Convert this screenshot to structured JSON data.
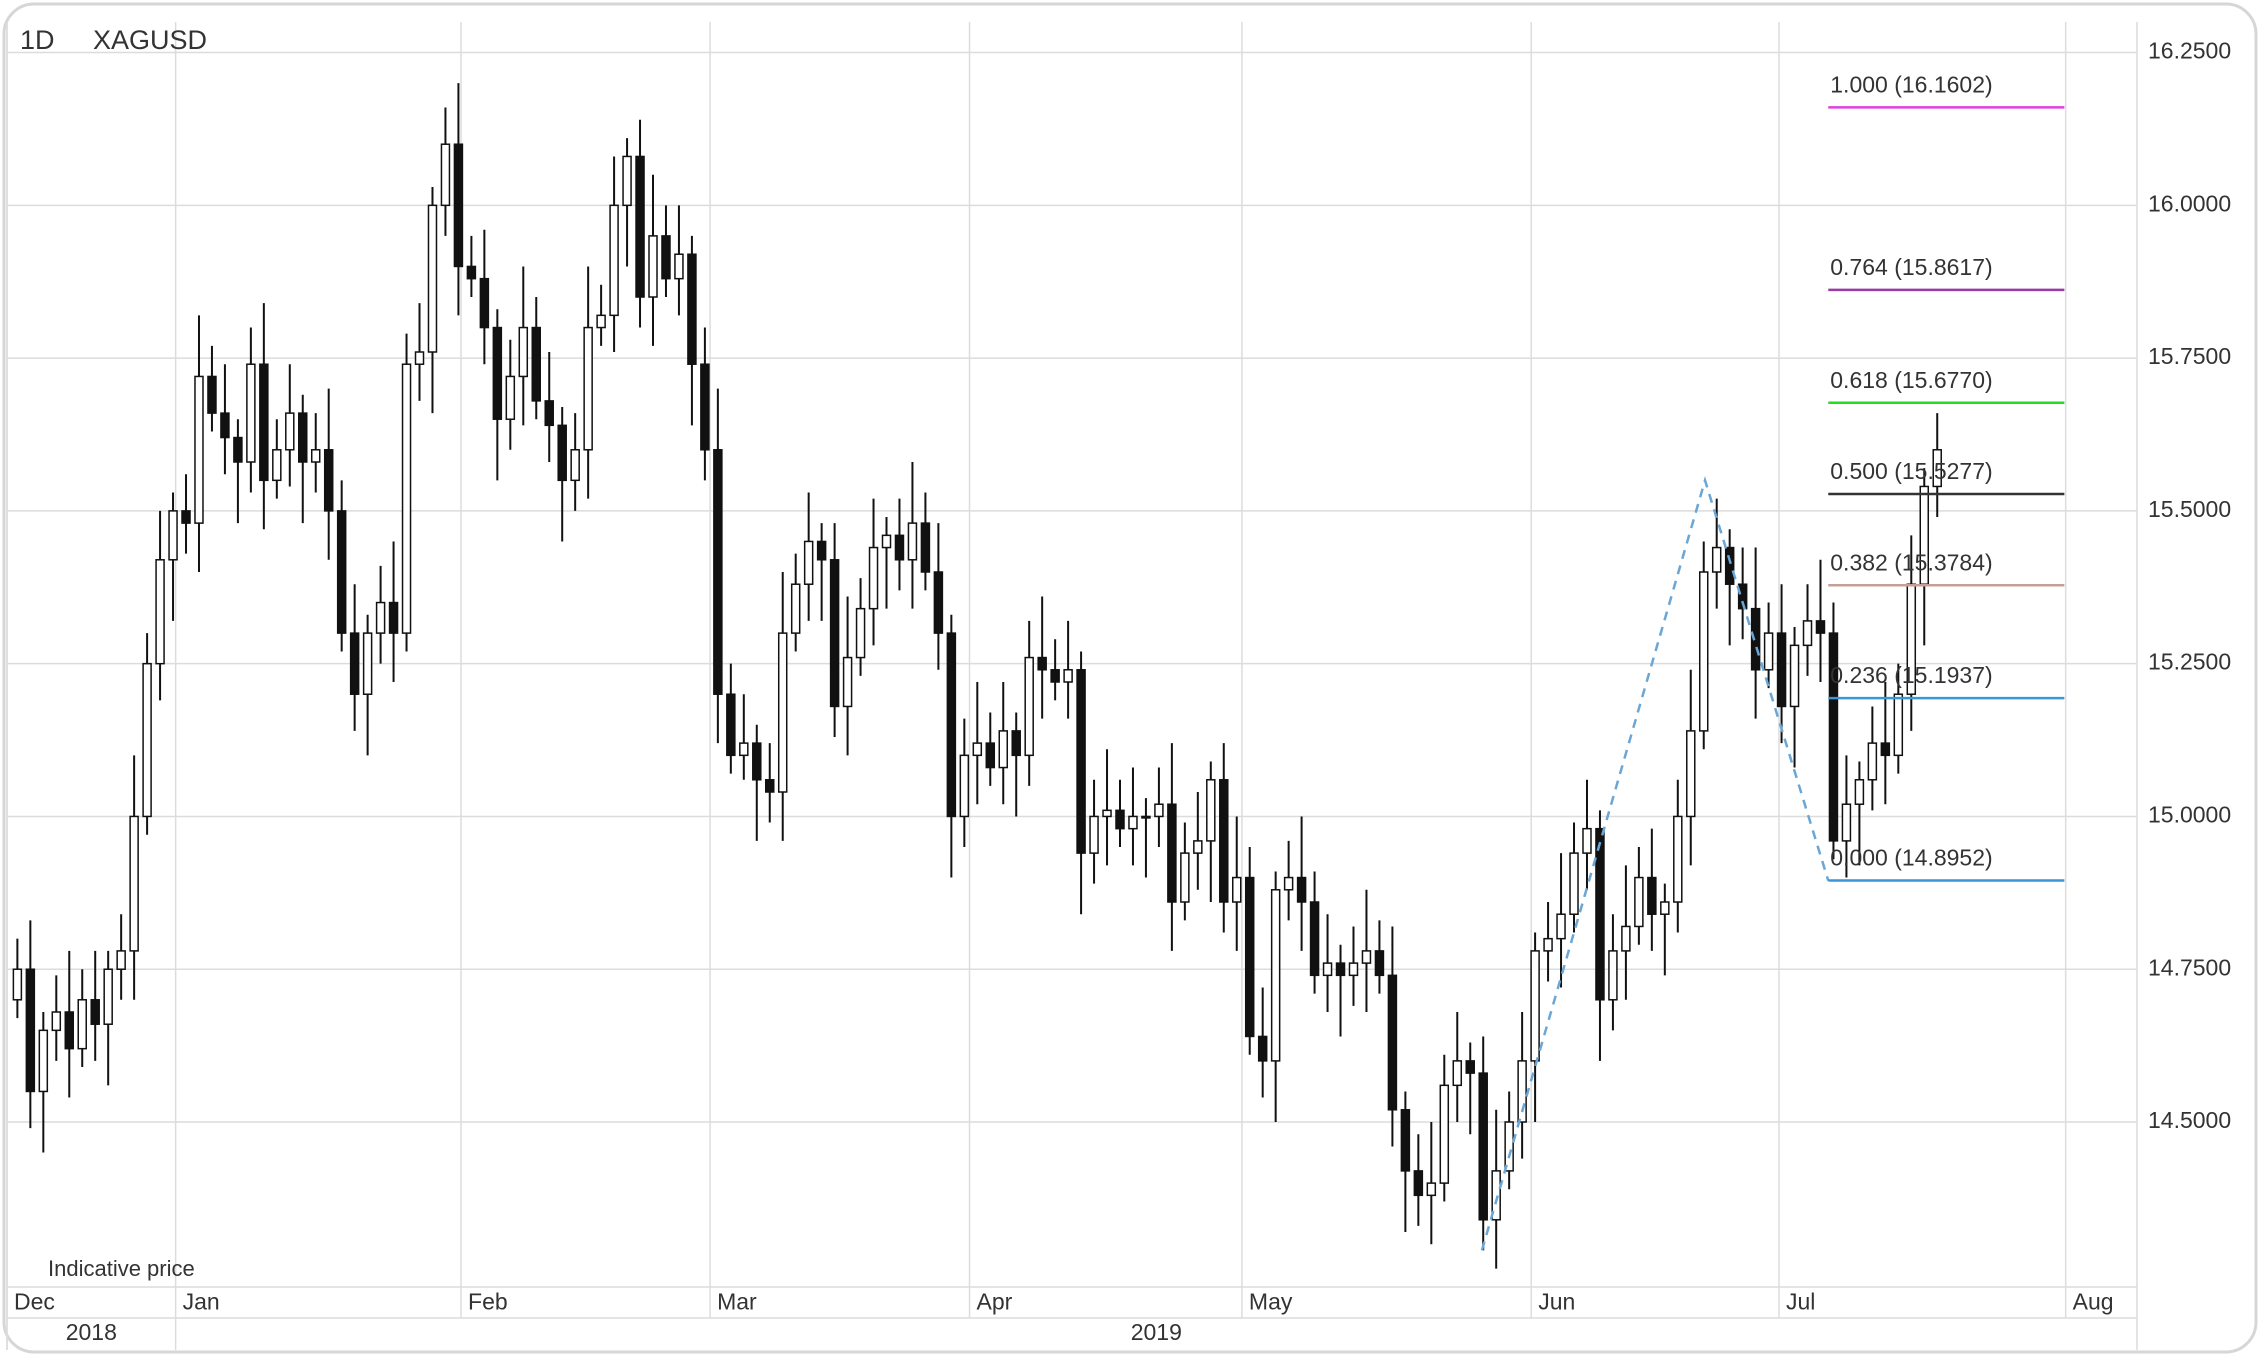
{
  "chart_data": {
    "type": "candlestick",
    "interval": "1D",
    "symbol": "XAGUSD",
    "note": "Indicative price",
    "xlim": [
      -0.8,
      163.4
    ],
    "xticks": [
      {
        "value": -0.8,
        "label": "Dec"
      },
      {
        "value": 12.2,
        "label": "Jan"
      },
      {
        "value": 34.2,
        "label": "Feb"
      },
      {
        "value": 53.4,
        "label": "Mar"
      },
      {
        "value": 73.4,
        "label": "Apr"
      },
      {
        "value": 94.4,
        "label": "May"
      },
      {
        "value": 116.7,
        "label": "Jun"
      },
      {
        "value": 135.8,
        "label": "Jul"
      },
      {
        "value": 157.9,
        "label": "Aug"
      }
    ],
    "year_ticks": [
      {
        "value": -0.8,
        "label": "2018"
      },
      {
        "value": 12.2,
        "label": "2019"
      }
    ],
    "ylim": [
      14.23,
      16.3
    ],
    "yticks": [
      {
        "value": 14.5,
        "label": "14.5000"
      },
      {
        "value": 14.75,
        "label": "14.7500"
      },
      {
        "value": 15,
        "label": "15.0000"
      },
      {
        "value": 15.25,
        "label": "15.2500"
      },
      {
        "value": 15.5,
        "label": "15.5000"
      },
      {
        "value": 15.75,
        "label": "15.7500"
      },
      {
        "value": 16,
        "label": "16.0000"
      },
      {
        "value": 16.25,
        "label": "16.2500"
      }
    ],
    "grid": true,
    "up_color": "#ffffff",
    "down_color": "#111111",
    "open": [
      14.7,
      14.75,
      14.55,
      14.65,
      14.68,
      14.62,
      14.7,
      14.66,
      14.75,
      14.78,
      15.0,
      15.25,
      15.42,
      15.5,
      15.48,
      15.72,
      15.66,
      15.62,
      15.58,
      15.74,
      15.55,
      15.6,
      15.66,
      15.58,
      15.6,
      15.5,
      15.3,
      15.2,
      15.3,
      15.35,
      15.3,
      15.74,
      15.76,
      16.0,
      16.1,
      15.9,
      15.88,
      15.8,
      15.65,
      15.72,
      15.8,
      15.68,
      15.64,
      15.55,
      15.6,
      15.8,
      15.82,
      16.0,
      16.08,
      15.85,
      15.95,
      15.88,
      15.92,
      15.74,
      15.6,
      15.2,
      15.1,
      15.12,
      15.06,
      15.04,
      15.3,
      15.38,
      15.45,
      15.42,
      15.18,
      15.26,
      15.34,
      15.44,
      15.46,
      15.42,
      15.48,
      15.4,
      15.3,
      15.0,
      15.1,
      15.12,
      15.08,
      15.14,
      15.1,
      15.26,
      15.24,
      15.22,
      15.24,
      14.94,
      15.0,
      15.01,
      14.98,
      15.0,
      15.0,
      15.02,
      14.86,
      14.94,
      14.96,
      15.06,
      14.86,
      14.9,
      14.64,
      14.6,
      14.88,
      14.9,
      14.86,
      14.74,
      14.76,
      14.74,
      14.76,
      14.78,
      14.74,
      14.52,
      14.42,
      14.38,
      14.4,
      14.56,
      14.6,
      14.58,
      14.34,
      14.42,
      14.5,
      14.6,
      14.78,
      14.8,
      14.84,
      14.94,
      14.98,
      14.7,
      14.78,
      14.82,
      14.9,
      14.84,
      14.86,
      15.0,
      15.14,
      15.4,
      15.44,
      15.38,
      15.34,
      15.24,
      15.3,
      15.18,
      15.28,
      15.32,
      15.3,
      14.96,
      15.02,
      15.06,
      15.12,
      15.1,
      15.2,
      15.38,
      15.54
    ],
    "high": [
      14.8,
      14.83,
      14.68,
      14.74,
      14.78,
      14.75,
      14.78,
      14.78,
      14.84,
      15.1,
      15.3,
      15.5,
      15.53,
      15.56,
      15.82,
      15.77,
      15.74,
      15.65,
      15.8,
      15.84,
      15.65,
      15.74,
      15.69,
      15.66,
      15.7,
      15.55,
      15.38,
      15.33,
      15.41,
      15.45,
      15.79,
      15.84,
      16.03,
      16.16,
      16.2,
      15.95,
      15.96,
      15.83,
      15.78,
      15.9,
      15.85,
      15.76,
      15.67,
      15.66,
      15.9,
      15.87,
      16.08,
      16.11,
      16.14,
      16.05,
      16.0,
      16.0,
      15.95,
      15.8,
      15.7,
      15.25,
      15.2,
      15.15,
      15.12,
      15.4,
      15.43,
      15.53,
      15.48,
      15.48,
      15.36,
      15.39,
      15.52,
      15.49,
      15.52,
      15.58,
      15.53,
      15.48,
      15.33,
      15.16,
      15.22,
      15.17,
      15.22,
      15.17,
      15.32,
      15.36,
      15.29,
      15.32,
      15.27,
      15.06,
      15.11,
      15.06,
      15.08,
      15.03,
      15.08,
      15.12,
      14.99,
      15.04,
      15.09,
      15.12,
      15.0,
      14.95,
      14.72,
      14.91,
      14.96,
      15.0,
      14.91,
      14.84,
      14.79,
      14.82,
      14.88,
      14.83,
      14.82,
      14.55,
      14.48,
      14.5,
      14.61,
      14.68,
      14.63,
      14.64,
      14.52,
      14.55,
      14.68,
      14.81,
      14.86,
      14.94,
      14.99,
      15.06,
      15.01,
      14.84,
      14.92,
      14.95,
      14.98,
      14.89,
      15.06,
      15.24,
      15.45,
      15.52,
      15.47,
      15.44,
      15.44,
      15.35,
      15.38,
      15.31,
      15.38,
      15.42,
      15.35,
      15.1,
      15.09,
      15.18,
      15.22,
      15.25,
      15.46,
      15.57,
      15.66
    ],
    "low": [
      14.67,
      14.49,
      14.45,
      14.6,
      14.54,
      14.59,
      14.6,
      14.56,
      14.7,
      14.7,
      14.97,
      15.19,
      15.32,
      15.43,
      15.4,
      15.63,
      15.56,
      15.48,
      15.53,
      15.47,
      15.52,
      15.54,
      15.48,
      15.53,
      15.42,
      15.27,
      15.14,
      15.1,
      15.25,
      15.22,
      15.27,
      15.68,
      15.66,
      15.95,
      15.82,
      15.85,
      15.74,
      15.55,
      15.6,
      15.64,
      15.65,
      15.58,
      15.45,
      15.5,
      15.52,
      15.77,
      15.76,
      15.9,
      15.8,
      15.77,
      15.85,
      15.82,
      15.64,
      15.55,
      15.12,
      15.07,
      15.06,
      14.96,
      14.99,
      14.96,
      15.27,
      15.32,
      15.32,
      15.13,
      15.1,
      15.23,
      15.28,
      15.34,
      15.37,
      15.34,
      15.37,
      15.24,
      14.9,
      14.95,
      15.02,
      15.05,
      15.02,
      15.0,
      15.05,
      15.16,
      15.19,
      15.16,
      14.84,
      14.89,
      14.92,
      14.95,
      14.92,
      14.9,
      14.95,
      14.78,
      14.83,
      14.88,
      14.86,
      14.81,
      14.78,
      14.61,
      14.54,
      14.5,
      14.83,
      14.78,
      14.71,
      14.68,
      14.64,
      14.69,
      14.68,
      14.71,
      14.46,
      14.32,
      14.33,
      14.3,
      14.37,
      14.5,
      14.48,
      14.29,
      14.26,
      14.39,
      14.44,
      14.5,
      14.73,
      14.72,
      14.81,
      14.88,
      14.6,
      14.65,
      14.7,
      14.79,
      14.78,
      14.74,
      14.81,
      14.92,
      15.11,
      15.34,
      15.28,
      15.29,
      15.16,
      15.21,
      15.12,
      15.08,
      15.23,
      15.22,
      14.93,
      14.9,
      14.92,
      15.01,
      15.02,
      15.07,
      15.14,
      15.28,
      15.49
    ],
    "close": [
      14.75,
      14.55,
      14.65,
      14.68,
      14.62,
      14.7,
      14.66,
      14.75,
      14.78,
      15.0,
      15.25,
      15.42,
      15.5,
      15.48,
      15.72,
      15.66,
      15.62,
      15.58,
      15.74,
      15.55,
      15.6,
      15.66,
      15.58,
      15.6,
      15.5,
      15.3,
      15.2,
      15.3,
      15.35,
      15.3,
      15.74,
      15.76,
      16.0,
      16.1,
      15.9,
      15.88,
      15.8,
      15.65,
      15.72,
      15.8,
      15.68,
      15.64,
      15.55,
      15.6,
      15.8,
      15.82,
      16.0,
      16.08,
      15.85,
      15.95,
      15.88,
      15.92,
      15.74,
      15.6,
      15.2,
      15.1,
      15.12,
      15.06,
      15.04,
      15.3,
      15.38,
      15.45,
      15.42,
      15.18,
      15.26,
      15.34,
      15.44,
      15.46,
      15.42,
      15.48,
      15.4,
      15.3,
      15.0,
      15.1,
      15.12,
      15.08,
      15.14,
      15.1,
      15.26,
      15.24,
      15.22,
      15.24,
      14.94,
      15.0,
      15.01,
      14.98,
      15.0,
      15.0,
      15.02,
      14.86,
      14.94,
      14.96,
      15.06,
      14.86,
      14.9,
      14.64,
      14.6,
      14.88,
      14.9,
      14.86,
      14.74,
      14.76,
      14.74,
      14.76,
      14.78,
      14.74,
      14.52,
      14.42,
      14.38,
      14.4,
      14.56,
      14.6,
      14.58,
      14.34,
      14.42,
      14.5,
      14.6,
      14.78,
      14.8,
      14.84,
      14.94,
      14.98,
      14.7,
      14.78,
      14.82,
      14.9,
      14.84,
      14.86,
      15.0,
      15.14,
      15.4,
      15.44,
      15.38,
      15.34,
      15.24,
      15.3,
      15.18,
      15.28,
      15.32,
      15.3,
      14.96,
      15.02,
      15.06,
      15.12,
      15.1,
      15.2,
      15.38,
      15.54,
      15.6
    ],
    "trend_line": {
      "color": "#6aa6d6",
      "x": [
        112.9,
        130.1,
        139.6
      ],
      "y": [
        14.29,
        15.55,
        14.895
      ]
    },
    "fib_x": [
      139.6,
      157.8
    ],
    "fib_levels": [
      {
        "value": 16.1602,
        "label": "1.000 (16.1602)",
        "color": "#e040e0"
      },
      {
        "value": 15.8617,
        "label": "0.764 (15.8617)",
        "color": "#9a3aa6"
      },
      {
        "value": 15.677,
        "label": "0.618 (15.6770)",
        "color": "#22dd22"
      },
      {
        "value": 15.5277,
        "label": "0.500 (15.5277)",
        "color": "#333333"
      },
      {
        "value": 15.3784,
        "label": "0.382 (15.3784)",
        "color": "#c4a099"
      },
      {
        "value": 15.1937,
        "label": "0.236 (15.1937)",
        "color": "#3a96d6"
      },
      {
        "value": 14.8952,
        "label": "0.000 (14.8952)",
        "color": "#3a96d6"
      }
    ]
  }
}
